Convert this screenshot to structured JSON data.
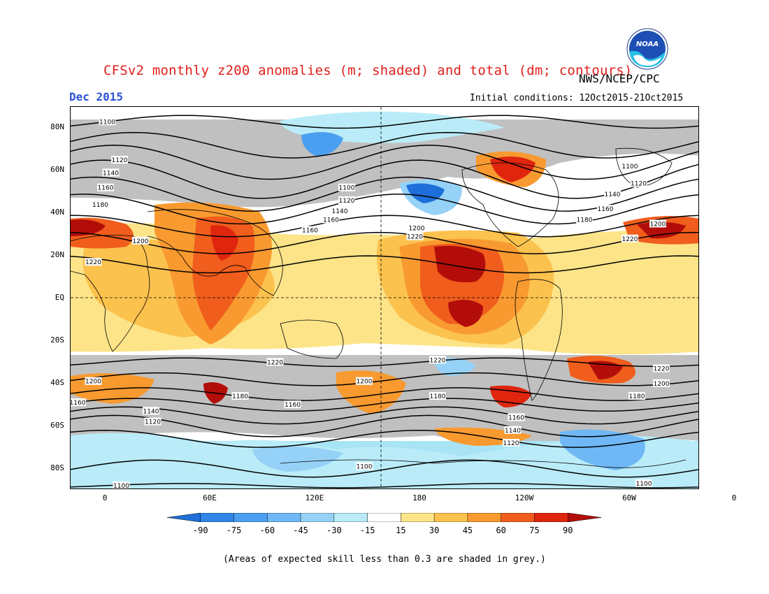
{
  "header": {
    "title": "CFSv2 monthly z200 anomalies (m; shaded) and total (dm; contours)",
    "agency": "NWS/NCEP/CPC",
    "month": "Dec 2015",
    "initial_conditions": "Initial conditions: 12Oct2015-21Oct2015",
    "logo_text": "NOAA"
  },
  "axes": {
    "lat_labels": [
      {
        "text": "80N",
        "lat": 80
      },
      {
        "text": "60N",
        "lat": 60
      },
      {
        "text": "40N",
        "lat": 40
      },
      {
        "text": "20N",
        "lat": 20
      },
      {
        "text": "EQ",
        "lat": 0
      },
      {
        "text": "20S",
        "lat": -20
      },
      {
        "text": "40S",
        "lat": -40
      },
      {
        "text": "60S",
        "lat": -60
      },
      {
        "text": "80S",
        "lat": -80
      }
    ],
    "lon_labels": [
      {
        "text": "0",
        "lon": 0
      },
      {
        "text": "60E",
        "lon": 60
      },
      {
        "text": "120E",
        "lon": 120
      },
      {
        "text": "180",
        "lon": 180
      },
      {
        "text": "120W",
        "lon": 240
      },
      {
        "text": "60W",
        "lon": 300
      },
      {
        "text": "0",
        "lon": 360
      }
    ]
  },
  "colorbar": {
    "ticks": [
      "-90",
      "-75",
      "-60",
      "-45",
      "-30",
      "-15",
      "15",
      "30",
      "45",
      "60",
      "75",
      "90"
    ],
    "colors": [
      "#1e6fd9",
      "#2f86e6",
      "#4a9ff0",
      "#6fb8f5",
      "#96d2f7",
      "#b9ecf8",
      "#ffffff",
      "#fde488",
      "#fcc24e",
      "#f89a30",
      "#f05d1c",
      "#e0250f",
      "#b30d0a"
    ]
  },
  "contours": {
    "labels": [
      {
        "text": "1100",
        "lat": 83,
        "lon": 1
      },
      {
        "text": "1120",
        "lat": 65,
        "lon": 8
      },
      {
        "text": "1140",
        "lat": 59,
        "lon": 3
      },
      {
        "text": "1160",
        "lat": 52,
        "lon": 0
      },
      {
        "text": "1180",
        "lat": 44,
        "lon": -3
      },
      {
        "text": "1200",
        "lat": 27,
        "lon": 20
      },
      {
        "text": "1220",
        "lat": 17,
        "lon": -7
      },
      {
        "text": "1100",
        "lat": 52,
        "lon": 138
      },
      {
        "text": "1120",
        "lat": 46,
        "lon": 138
      },
      {
        "text": "1140",
        "lat": 41,
        "lon": 134
      },
      {
        "text": "1160",
        "lat": 37,
        "lon": 129
      },
      {
        "text": "1160",
        "lat": 32,
        "lon": 117
      },
      {
        "text": "1200",
        "lat": 33,
        "lon": 178
      },
      {
        "text": "1220",
        "lat": 29,
        "lon": 177
      },
      {
        "text": "1100",
        "lat": 62,
        "lon": 300
      },
      {
        "text": "1120",
        "lat": 54,
        "lon": 305
      },
      {
        "text": "1140",
        "lat": 49,
        "lon": 290
      },
      {
        "text": "1160",
        "lat": 42,
        "lon": 286
      },
      {
        "text": "1180",
        "lat": 37,
        "lon": 274
      },
      {
        "text": "1200",
        "lat": 35,
        "lon": 316
      },
      {
        "text": "1220",
        "lat": 28,
        "lon": 300
      },
      {
        "text": "1220",
        "lat": -30,
        "lon": 97
      },
      {
        "text": "1200",
        "lat": -39,
        "lon": -7
      },
      {
        "text": "1160",
        "lat": -49,
        "lon": -16
      },
      {
        "text": "1180",
        "lat": -46,
        "lon": 77
      },
      {
        "text": "1160",
        "lat": -50,
        "lon": 107
      },
      {
        "text": "1140",
        "lat": -53,
        "lon": 26
      },
      {
        "text": "1120",
        "lat": -58,
        "lon": 27
      },
      {
        "text": "1200",
        "lat": -39,
        "lon": 148
      },
      {
        "text": "1220",
        "lat": -29,
        "lon": 190
      },
      {
        "text": "1180",
        "lat": -46,
        "lon": 190
      },
      {
        "text": "1160",
        "lat": -56,
        "lon": 235
      },
      {
        "text": "1140",
        "lat": -62,
        "lon": 233
      },
      {
        "text": "1120",
        "lat": -68,
        "lon": 232
      },
      {
        "text": "1220",
        "lat": -33,
        "lon": 318
      },
      {
        "text": "1200",
        "lat": -40,
        "lon": 318
      },
      {
        "text": "1180",
        "lat": -46,
        "lon": 304
      },
      {
        "text": "1100",
        "lat": -79,
        "lon": 148
      },
      {
        "text": "1100",
        "lat": -88,
        "lon": 9
      },
      {
        "text": "1100",
        "lat": -87,
        "lon": 308
      }
    ]
  },
  "footnote": "(Areas of expected skill less than 0.3 are shaded in grey.)"
}
